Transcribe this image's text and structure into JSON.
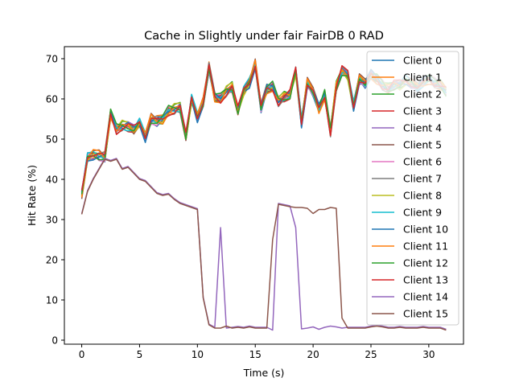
{
  "chart_data": {
    "type": "line",
    "title": "Cache in Slightly under fair FairDB 0 RAD",
    "xlabel": "Time (s)",
    "ylabel": "Hit Rate (%)",
    "xlim": [
      -1.5,
      33
    ],
    "ylim": [
      -1,
      73
    ],
    "xticks": [
      0,
      5,
      10,
      15,
      20,
      25,
      30
    ],
    "yticks": [
      0,
      10,
      20,
      30,
      40,
      50,
      60,
      70
    ],
    "legend_position": "upper right",
    "x": [
      0,
      0.5,
      1,
      1.5,
      2,
      2.5,
      3,
      3.5,
      4,
      4.5,
      5,
      5.5,
      6,
      6.5,
      7,
      7.5,
      8,
      8.5,
      9,
      9.5,
      10,
      10.5,
      11,
      11.5,
      12,
      12.5,
      13,
      13.5,
      14,
      14.5,
      15,
      15.5,
      16,
      16.5,
      17,
      17.5,
      18,
      18.5,
      19,
      19.5,
      20,
      20.5,
      21,
      21.5,
      22,
      22.5,
      23,
      23.5,
      24,
      24.5,
      25,
      25.5,
      26,
      26.5,
      27,
      27.5,
      28,
      28.5,
      29,
      29.5,
      30,
      30.5,
      31,
      31.5
    ],
    "high_base": [
      36.3,
      45.3,
      46.2,
      46.0,
      45.5,
      56.5,
      52.5,
      53.3,
      53.3,
      52.3,
      54.0,
      50.6,
      55.0,
      54.5,
      55.0,
      57.0,
      57.5,
      58.0,
      50.5,
      60.0,
      55.5,
      59.0,
      68.0,
      60.5,
      60.0,
      62.0,
      63.0,
      57.0,
      62.0,
      64.0,
      68.5,
      58.0,
      62.5,
      63.0,
      59.5,
      60.5,
      61.0,
      67.0,
      54.0,
      64.0,
      62.0,
      57.5,
      61.0,
      52.0,
      63.0,
      67.0,
      66.0,
      58.0,
      65.0,
      64.0,
      66.0,
      65.0,
      63.5,
      62.5,
      63.5,
      63.5,
      64.5,
      64.0,
      63.0,
      64.0,
      65.0,
      64.0,
      63.5,
      62.0
    ],
    "low_base": [
      31.3,
      37.0,
      40.0,
      42.5,
      45.0,
      44.5,
      45.0,
      42.5,
      43.0,
      41.5,
      40.0,
      39.5,
      38.0,
      36.5,
      36.0,
      36.3,
      35.0,
      34.0,
      33.5,
      33.0,
      32.5,
      10.5,
      3.8,
      3.0,
      3.0,
      3.5,
      3.0,
      3.2,
      3.0,
      3.3,
      3.0,
      3.0,
      3.0,
      25.0,
      33.8,
      33.5,
      33.2,
      33.0,
      33.0,
      32.8,
      31.5,
      32.5,
      32.5,
      33.0,
      32.8,
      5.5,
      3.0,
      3.0,
      3.0,
      3.0,
      3.3,
      3.5,
      3.3,
      3.0,
      3.0,
      3.2,
      3.0,
      3.0,
      3.0,
      3.2,
      3.0,
      3.0,
      3.0,
      2.5
    ],
    "client14_diff": {
      "12": 28.0,
      "12.5": 3.0,
      "16.5": 2.5,
      "18.5": 28.0,
      "19": 2.8,
      "19.5": 3.0,
      "20": 3.3,
      "20.5": 2.7,
      "21": 3.2,
      "21.5": 3.5,
      "22": 3.3,
      "22.5": 3.0
    },
    "series": [
      {
        "name": "Client 0",
        "color": "#1f77b4",
        "group": "high"
      },
      {
        "name": "Client 1",
        "color": "#ff7f0e",
        "group": "high"
      },
      {
        "name": "Client 2",
        "color": "#2ca02c",
        "group": "high"
      },
      {
        "name": "Client 3",
        "color": "#d62728",
        "group": "high"
      },
      {
        "name": "Client 4",
        "color": "#9467bd",
        "group": "high"
      },
      {
        "name": "Client 5",
        "color": "#8c564b",
        "group": "high"
      },
      {
        "name": "Client 6",
        "color": "#e377c2",
        "group": "high"
      },
      {
        "name": "Client 7",
        "color": "#7f7f7f",
        "group": "high"
      },
      {
        "name": "Client 8",
        "color": "#bcbd22",
        "group": "high"
      },
      {
        "name": "Client 9",
        "color": "#17becf",
        "group": "high"
      },
      {
        "name": "Client 10",
        "color": "#1f77b4",
        "group": "high"
      },
      {
        "name": "Client 11",
        "color": "#ff7f0e",
        "group": "high"
      },
      {
        "name": "Client 12",
        "color": "#2ca02c",
        "group": "high"
      },
      {
        "name": "Client 13",
        "color": "#d62728",
        "group": "high"
      },
      {
        "name": "Client 14",
        "color": "#9467bd",
        "group": "low"
      },
      {
        "name": "Client 15",
        "color": "#8c564b",
        "group": "low"
      }
    ]
  }
}
